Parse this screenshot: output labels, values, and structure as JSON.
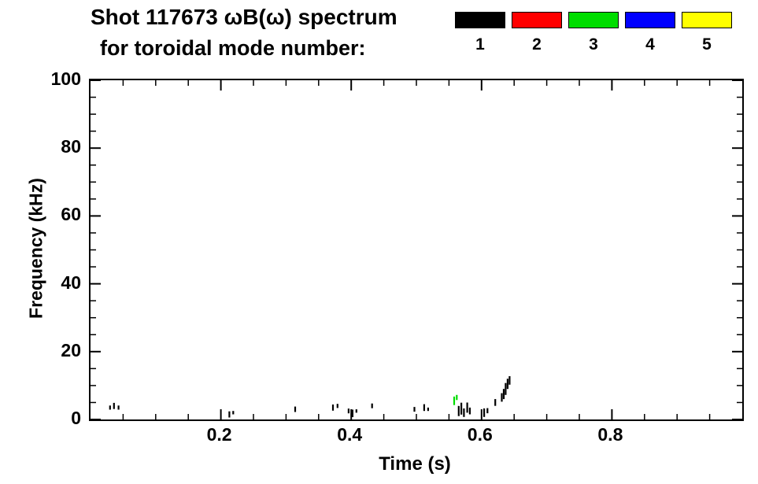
{
  "chart_data": {
    "type": "scatter",
    "title": "Shot 117673 ωB(ω) spectrum",
    "subtitle": "for toroidal mode number:",
    "xlabel": "Time (s)",
    "ylabel": "Frequency (kHz)",
    "xlim": [
      0.0,
      1.0
    ],
    "ylim": [
      0,
      100
    ],
    "xticks": [
      0.2,
      0.4,
      0.6,
      0.8
    ],
    "yticks": [
      0,
      20,
      40,
      60,
      80,
      100
    ],
    "xminor": 0.05,
    "yminor": 5,
    "grid": false,
    "legend_position": "top-right",
    "legend": [
      {
        "label": "1",
        "color": "#000000"
      },
      {
        "label": "2",
        "color": "#ff0000"
      },
      {
        "label": "3",
        "color": "#00dd00"
      },
      {
        "label": "4",
        "color": "#0000ff"
      },
      {
        "label": "5",
        "color": "#ffff00"
      }
    ],
    "series": [
      {
        "name": "mode n=1",
        "color": "#000000",
        "points": [
          {
            "t": 0.03,
            "f": 3.5,
            "h": 1.2
          },
          {
            "t": 0.036,
            "f": 4.0,
            "h": 1.8
          },
          {
            "t": 0.043,
            "f": 3.5,
            "h": 1.2
          },
          {
            "t": 0.213,
            "f": 1.5,
            "h": 1.8
          },
          {
            "t": 0.219,
            "f": 2.0,
            "h": 1.0
          },
          {
            "t": 0.314,
            "f": 3.0,
            "h": 1.6
          },
          {
            "t": 0.372,
            "f": 3.5,
            "h": 1.8
          },
          {
            "t": 0.379,
            "f": 4.0,
            "h": 1.2
          },
          {
            "t": 0.396,
            "f": 2.5,
            "h": 1.4
          },
          {
            "t": 0.402,
            "f": 1.8,
            "h": 2.2
          },
          {
            "t": 0.408,
            "f": 2.5,
            "h": 1.0
          },
          {
            "t": 0.432,
            "f": 4.0,
            "h": 1.4
          },
          {
            "t": 0.497,
            "f": 3.0,
            "h": 1.4
          },
          {
            "t": 0.512,
            "f": 3.5,
            "h": 2.0
          },
          {
            "t": 0.518,
            "f": 3.0,
            "h": 1.0
          },
          {
            "t": 0.565,
            "f": 2.5,
            "h": 3.0
          },
          {
            "t": 0.569,
            "f": 3.2,
            "h": 3.5
          },
          {
            "t": 0.573,
            "f": 2.0,
            "h": 2.5
          },
          {
            "t": 0.578,
            "f": 3.5,
            "h": 3.0
          },
          {
            "t": 0.582,
            "f": 2.5,
            "h": 2.0
          },
          {
            "t": 0.604,
            "f": 2.0,
            "h": 2.5
          },
          {
            "t": 0.609,
            "f": 2.6,
            "h": 1.5
          },
          {
            "t": 0.621,
            "f": 5.0,
            "h": 2.0
          },
          {
            "t": 0.631,
            "f": 6.5,
            "h": 2.5
          },
          {
            "t": 0.634,
            "f": 7.5,
            "h": 3.0
          },
          {
            "t": 0.637,
            "f": 9.0,
            "h": 3.5
          },
          {
            "t": 0.64,
            "f": 10.5,
            "h": 3.0
          },
          {
            "t": 0.643,
            "f": 11.5,
            "h": 2.5
          }
        ]
      },
      {
        "name": "mode n=3",
        "color": "#00dd00",
        "points": [
          {
            "t": 0.558,
            "f": 5.5,
            "h": 2.5
          },
          {
            "t": 0.562,
            "f": 6.5,
            "h": 1.5
          }
        ]
      }
    ]
  }
}
